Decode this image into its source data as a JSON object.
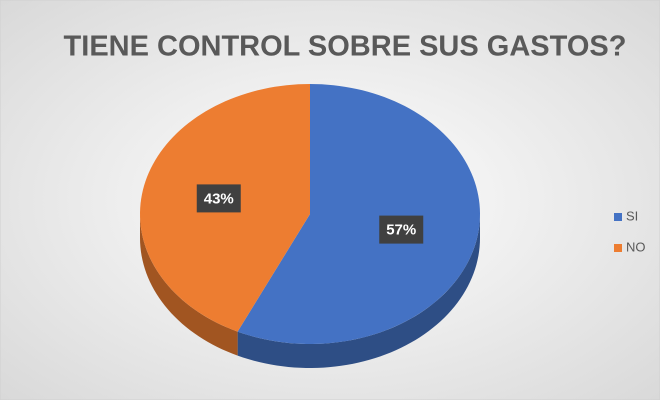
{
  "chart_data": {
    "type": "pie",
    "title": "TIENE CONTROL SOBRE SUS GASTOS?",
    "categories": [
      "SI",
      "NO"
    ],
    "values": [
      57,
      43
    ],
    "value_labels": [
      "57%",
      "43%"
    ],
    "colors": [
      "#4472c4",
      "#ed7d31"
    ],
    "legend": "right"
  }
}
